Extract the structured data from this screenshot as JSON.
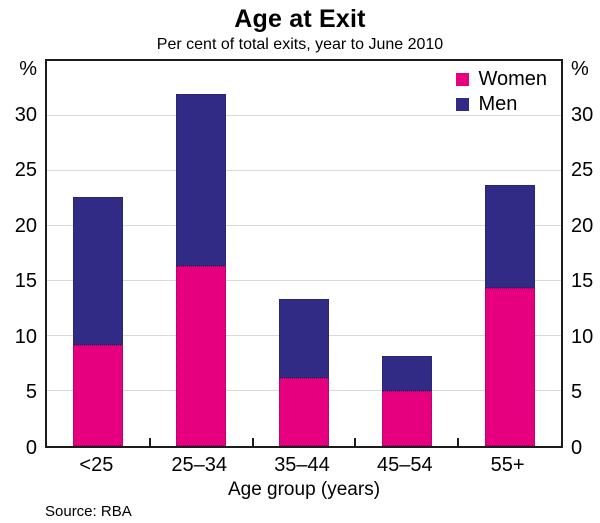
{
  "title": "Age at Exit",
  "subtitle": "Per cent of total exits, year to June 2010",
  "xlabel": "Age group (years)",
  "source": "Source: RBA",
  "unit_label": "%",
  "colors": {
    "women": "#E60080",
    "men": "#322B85",
    "gridline": "#dadada",
    "frame": "#1c1c1c"
  },
  "chart_data": {
    "type": "bar",
    "stacked": true,
    "title": "Age at Exit",
    "subtitle": "Per cent of total exits, year to June 2010",
    "xlabel": "Age group (years)",
    "ylabel": "%",
    "ylabel_right": "%",
    "source": "Source: RBA",
    "categories": [
      "<25",
      "25–34",
      "35–44",
      "45–54",
      "55+"
    ],
    "series": [
      {
        "name": "Women",
        "color_key": "women",
        "values": [
          9.2,
          16.4,
          6.2,
          5.0,
          14.4
        ]
      },
      {
        "name": "Men",
        "color_key": "men",
        "values": [
          13.4,
          15.6,
          7.2,
          3.2,
          9.3
        ]
      }
    ],
    "stack_totals": [
      22.6,
      32.0,
      13.4,
      8.2,
      23.7
    ],
    "ylim": [
      0,
      35
    ],
    "yticks": [
      0,
      5,
      10,
      15,
      20,
      25,
      30
    ],
    "grid": true,
    "legend_position": "top-right",
    "axes_mirrored": true
  }
}
